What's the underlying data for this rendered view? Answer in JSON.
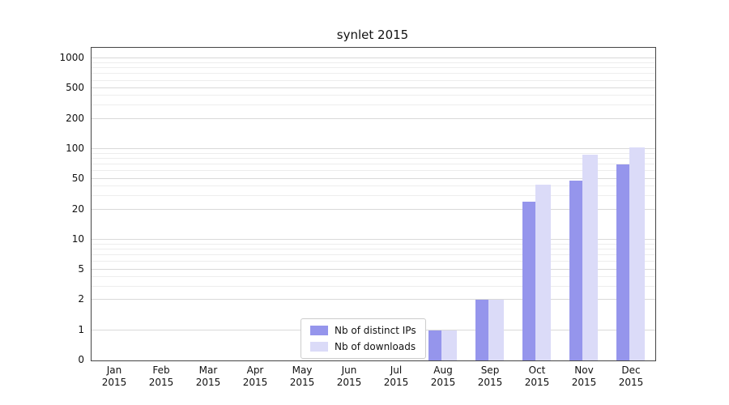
{
  "chart_data": {
    "type": "bar",
    "title": "synlet 2015",
    "x_year": "2015",
    "categories": [
      "Jan",
      "Feb",
      "Mar",
      "Apr",
      "May",
      "Jun",
      "Jul",
      "Aug",
      "Sep",
      "Oct",
      "Nov",
      "Dec"
    ],
    "series": [
      {
        "name": "Nb of distinct IPs",
        "color": "#9595ec",
        "values": [
          0,
          0,
          0,
          0,
          0,
          0,
          0,
          1,
          2,
          25,
          48,
          70
        ]
      },
      {
        "name": "Nb of downloads",
        "color": "#dbdbf8",
        "values": [
          0,
          0,
          0,
          0,
          0,
          0,
          0,
          1,
          2,
          42,
          88,
          103
        ]
      }
    ],
    "y_ticks": [
      0,
      1,
      2,
      5,
      10,
      20,
      50,
      100,
      200,
      500,
      1000
    ],
    "y_minor_ticks": [
      3,
      4,
      6,
      7,
      8,
      9,
      30,
      40,
      60,
      70,
      80,
      90,
      300,
      400,
      600,
      700,
      800,
      900
    ],
    "y_scale": "symlog-style: ticks 0,1,2,5,10,... evenly spaced, log interpolation between ticks",
    "ylim": [
      0,
      1250
    ],
    "grid": true,
    "legend_position": "lower center",
    "colors": {
      "bar_dark": "#9595ec",
      "bar_light": "#dbdbf8",
      "grid_major": "#d9d9d9",
      "grid_minor": "#ededed"
    }
  }
}
